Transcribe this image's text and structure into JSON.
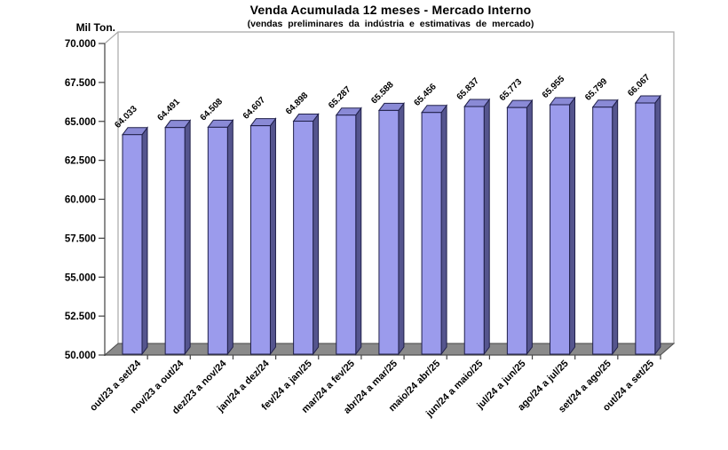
{
  "chart_data": {
    "type": "bar",
    "title": "Venda Acumulada 12 meses -  Mercado Interno",
    "subtitle": "(vendas preliminares da indústria e estimativas de mercado)",
    "ylabel": "Mil Ton.",
    "xlabel": "",
    "legend": "none",
    "grid": false,
    "style": "3d-column",
    "categories": [
      "out/23 a set/24",
      "nov/23 a out/24",
      "dez/23 a nov/24",
      "jan/24 a dez/24",
      "fev/24 a jan/25",
      "mar/24 a fev/25",
      "abr/24 a mar/25",
      "maio/24 abr/25",
      "jun/24 a maio/25",
      "jul/24 a jun/25",
      "ago/24 a jul/25",
      "set/24 a ago/25",
      "out/24 a set/25"
    ],
    "values": [
      64033,
      64491,
      64508,
      64607,
      64898,
      65287,
      65588,
      65456,
      65837,
      65773,
      65955,
      65799,
      66067
    ],
    "value_labels": [
      "64.033",
      "64.491",
      "64.508",
      "64.607",
      "64.898",
      "65.287",
      "65.588",
      "65.456",
      "65.837",
      "65.773",
      "65.955",
      "65.799",
      "66.067"
    ],
    "y_axis": {
      "min": 50000,
      "max": 70000,
      "step": 2500,
      "tick_labels": [
        "70.000",
        "67.500",
        "65.000",
        "62.500",
        "60.000",
        "57.500",
        "55.000",
        "52.500",
        "50.000"
      ]
    },
    "colors": {
      "bar_front": "#9B9BEC",
      "bar_top": "#8A8AD6",
      "bar_side": "#55558E",
      "bar_outline": "#20204A",
      "floor": "#8A8A8A",
      "floor_edge": "#4D4D4D",
      "wall_fill": "#FFFFFF",
      "wall_border": "#A8A8A8",
      "axis": "#404040",
      "text": "#000000"
    }
  }
}
